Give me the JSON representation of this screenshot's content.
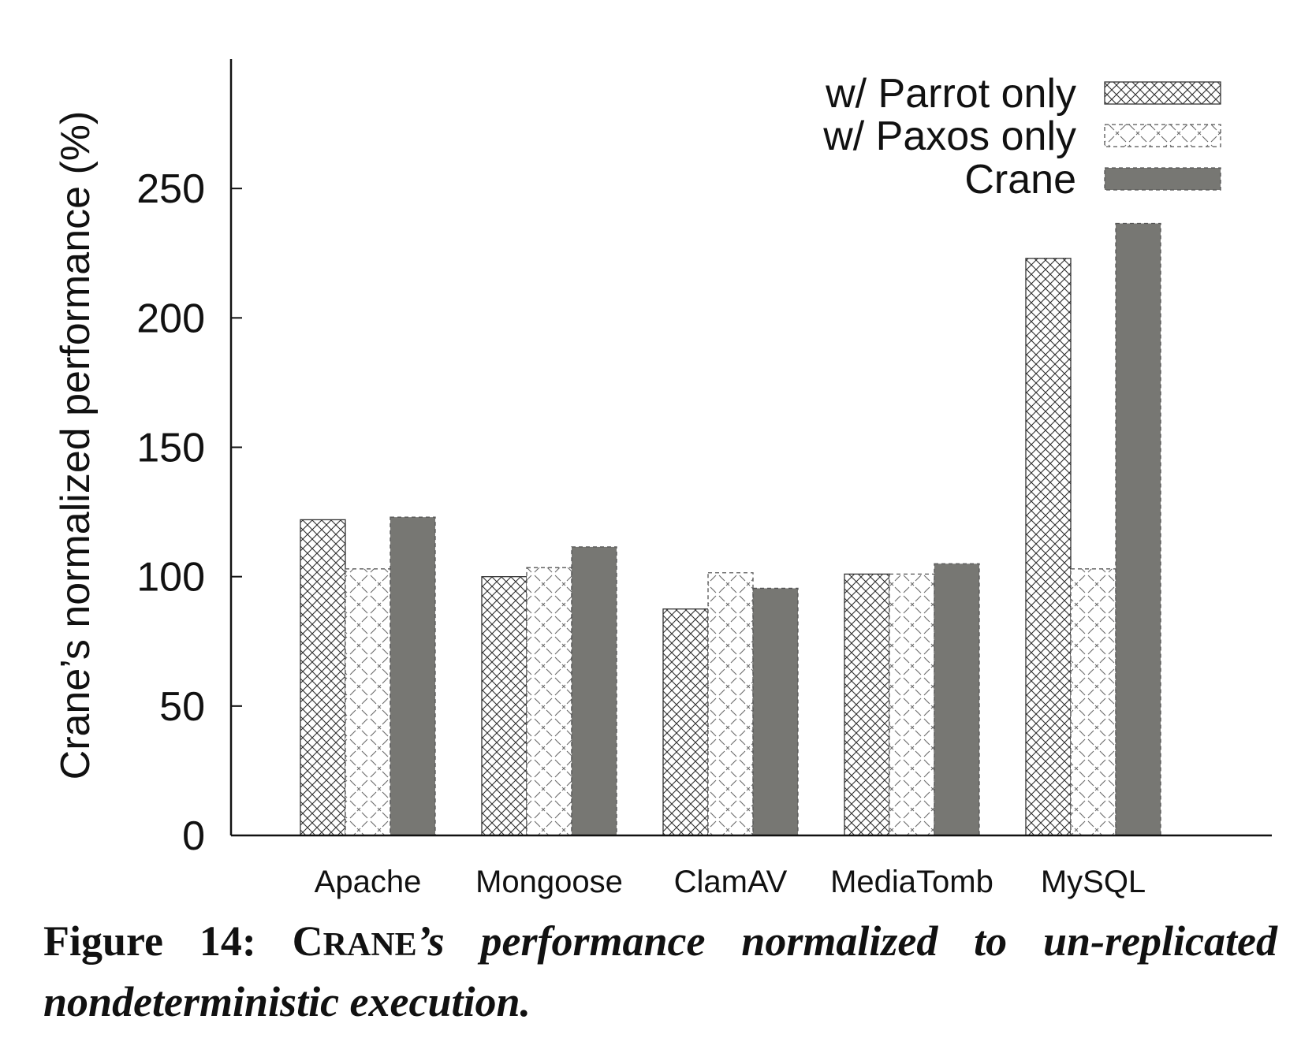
{
  "chart_data": {
    "type": "bar",
    "categories": [
      "Apache",
      "Mongoose",
      "ClamAV",
      "MediaTomb",
      "MySQL"
    ],
    "series": [
      {
        "name": "w/ Parrot only",
        "values": [
          122,
          100,
          87.5,
          101,
          223
        ],
        "pattern": "crosshatch"
      },
      {
        "name": "w/ Paxos only",
        "values": [
          103,
          103.5,
          101.5,
          101,
          103
        ],
        "pattern": "dashed-cross"
      },
      {
        "name": "Crane",
        "values": [
          123,
          111.5,
          95.5,
          105,
          236.5
        ],
        "pattern": "solid",
        "color": "#777773"
      }
    ],
    "title": "",
    "xlabel": "",
    "ylabel": "Crane’s normalized performance (%)",
    "ylim": [
      0,
      300
    ],
    "yticks": [
      0,
      50,
      100,
      150,
      200,
      250
    ],
    "grid": false,
    "legend_position": "top-right"
  },
  "caption": {
    "label": "Figure 14:",
    "crane_initial": "C",
    "crane_rest": "RANE",
    "text_part1": "’s performance normalized to un-replicated",
    "text_part2": "nondeterministic execution."
  },
  "colors": {
    "axis": "#111111",
    "crane_fill": "#777773",
    "hatch": "#333333",
    "dashed_edge": "#555555"
  }
}
